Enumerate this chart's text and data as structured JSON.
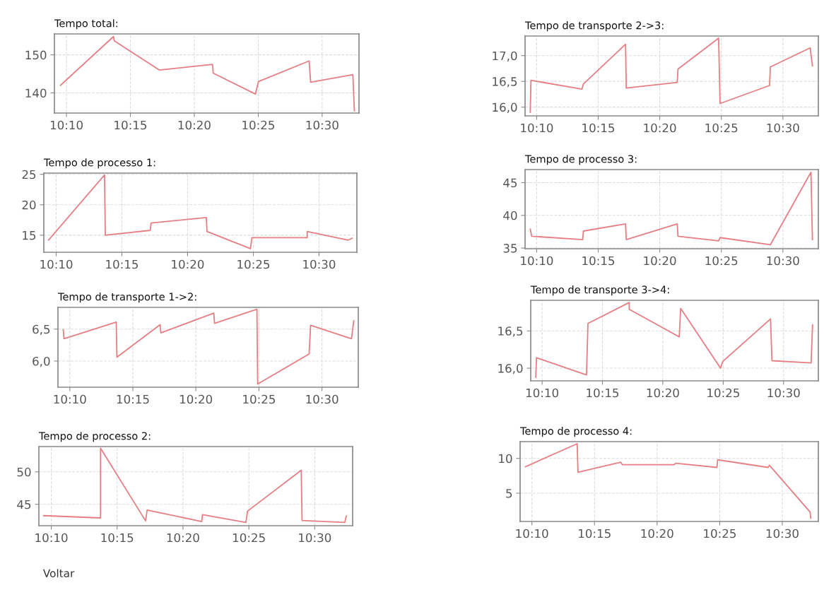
{
  "chart_data": [
    {
      "type": "line",
      "title": "Tempo total:",
      "color": "#e57f84",
      "grid": true,
      "xlim": [
        10.151,
        10.548
      ],
      "ylim": [
        134.7,
        155.5
      ],
      "xticks": [
        {
          "value": 10.1667,
          "label": "10:10"
        },
        {
          "value": 10.25,
          "label": "10:15"
        },
        {
          "value": 10.3333,
          "label": "10:20"
        },
        {
          "value": 10.4167,
          "label": "10:25"
        },
        {
          "value": 10.5,
          "label": "10:30"
        }
      ],
      "yticks": [
        140,
        150
      ],
      "x": [
        10.159,
        10.228,
        10.229,
        10.288,
        10.357,
        10.358,
        10.413,
        10.417,
        10.483,
        10.485,
        10.54,
        10.542
      ],
      "values": [
        142.0,
        154.8,
        153.7,
        146.0,
        147.5,
        145.2,
        139.7,
        143.0,
        148.4,
        142.8,
        144.8,
        135.3
      ]
    },
    {
      "type": "line",
      "title": "Tempo de processo 1:",
      "color": "#e57f84",
      "grid": true,
      "xlim": [
        10.151,
        10.548
      ],
      "ylim": [
        12.2,
        25.2
      ],
      "xticks": [
        {
          "value": 10.1667,
          "label": "10:10"
        },
        {
          "value": 10.25,
          "label": "10:15"
        },
        {
          "value": 10.3333,
          "label": "10:20"
        },
        {
          "value": 10.4167,
          "label": "10:25"
        },
        {
          "value": 10.5,
          "label": "10:30"
        }
      ],
      "yticks": [
        15,
        20,
        25
      ],
      "x": [
        10.157,
        10.228,
        10.229,
        10.286,
        10.287,
        10.357,
        10.358,
        10.413,
        10.415,
        10.485,
        10.485,
        10.537,
        10.542
      ],
      "values": [
        14.2,
        24.9,
        15.0,
        15.8,
        17.0,
        17.9,
        15.6,
        12.8,
        14.6,
        14.6,
        15.6,
        14.2,
        14.5
      ]
    },
    {
      "type": "line",
      "title": "Tempo de transporte 1->2:",
      "color": "#e57f84",
      "grid": true,
      "xlim": [
        10.151,
        10.548
      ],
      "ylim": [
        5.59,
        6.84
      ],
      "xticks": [
        {
          "value": 10.1667,
          "label": "10:10"
        },
        {
          "value": 10.25,
          "label": "10:15"
        },
        {
          "value": 10.3333,
          "label": "10:20"
        },
        {
          "value": 10.4167,
          "label": "10:25"
        },
        {
          "value": 10.5,
          "label": "10:30"
        }
      ],
      "yticks": [
        {
          "value": 6.0,
          "label": "6,0"
        },
        {
          "value": 6.5,
          "label": "6,5"
        }
      ],
      "x": [
        10.158,
        10.159,
        10.228,
        10.229,
        10.286,
        10.287,
        10.357,
        10.358,
        10.414,
        10.415,
        10.483,
        10.485,
        10.539,
        10.542
      ],
      "values": [
        6.49,
        6.35,
        6.61,
        6.06,
        6.57,
        6.44,
        6.75,
        6.59,
        6.81,
        5.64,
        6.11,
        6.56,
        6.35,
        6.63
      ]
    },
    {
      "type": "line",
      "title": "Tempo de processo 2:",
      "color": "#e57f84",
      "grid": true,
      "xlim": [
        10.151,
        10.548
      ],
      "ylim": [
        41.7,
        53.9
      ],
      "xticks": [
        {
          "value": 10.1667,
          "label": "10:10"
        },
        {
          "value": 10.25,
          "label": "10:15"
        },
        {
          "value": 10.3333,
          "label": "10:20"
        },
        {
          "value": 10.4167,
          "label": "10:25"
        },
        {
          "value": 10.5,
          "label": "10:30"
        }
      ],
      "yticks": [
        45,
        50
      ],
      "x": [
        10.157,
        10.229,
        10.229,
        10.286,
        10.288,
        10.357,
        10.358,
        10.413,
        10.415,
        10.483,
        10.484,
        10.538,
        10.54
      ],
      "values": [
        43.25,
        42.9,
        53.65,
        42.45,
        44.1,
        42.35,
        43.4,
        42.2,
        43.95,
        50.25,
        42.5,
        42.2,
        43.2
      ],
      "annotations": [
        "Voltar"
      ]
    },
    {
      "type": "line",
      "title": "Tempo de transporte 2->3:",
      "color": "#e57f84",
      "grid": true,
      "xlim": [
        10.151,
        10.548
      ],
      "ylim": [
        15.83,
        17.38
      ],
      "xticks": [
        {
          "value": 10.1667,
          "label": "10:10"
        },
        {
          "value": 10.25,
          "label": "10:15"
        },
        {
          "value": 10.3333,
          "label": "10:20"
        },
        {
          "value": 10.4167,
          "label": "10:25"
        },
        {
          "value": 10.5,
          "label": "10:30"
        }
      ],
      "yticks": [
        {
          "value": 16.0,
          "label": "16,0"
        },
        {
          "value": 16.5,
          "label": "16,5"
        },
        {
          "value": 17.0,
          "label": "17,0"
        }
      ],
      "x": [
        10.158,
        10.159,
        10.228,
        10.23,
        10.287,
        10.288,
        10.357,
        10.358,
        10.413,
        10.415,
        10.482,
        10.483,
        10.537,
        10.54
      ],
      "values": [
        15.9,
        16.52,
        16.35,
        16.45,
        17.22,
        16.37,
        16.48,
        16.74,
        17.34,
        16.07,
        16.42,
        16.78,
        17.15,
        16.8
      ]
    },
    {
      "type": "line",
      "title": "Tempo de processo 3:",
      "color": "#e57f84",
      "grid": true,
      "xlim": [
        10.151,
        10.548
      ],
      "ylim": [
        34.9,
        47.0
      ],
      "xticks": [
        {
          "value": 10.1667,
          "label": "10:10"
        },
        {
          "value": 10.25,
          "label": "10:15"
        },
        {
          "value": 10.3333,
          "label": "10:20"
        },
        {
          "value": 10.4167,
          "label": "10:25"
        },
        {
          "value": 10.5,
          "label": "10:30"
        }
      ],
      "yticks": [
        35,
        40,
        45
      ],
      "x": [
        10.158,
        10.16,
        10.229,
        10.23,
        10.287,
        10.288,
        10.357,
        10.358,
        10.413,
        10.415,
        10.483,
        10.538,
        10.54
      ],
      "values": [
        37.9,
        36.8,
        36.3,
        37.6,
        38.7,
        36.3,
        38.7,
        36.8,
        36.1,
        36.6,
        35.5,
        46.6,
        36.3
      ]
    },
    {
      "type": "line",
      "title": "Tempo de transporte 3->4:",
      "color": "#e57f84",
      "grid": true,
      "xlim": [
        10.151,
        10.548
      ],
      "ylim": [
        15.83,
        16.91
      ],
      "xticks": [
        {
          "value": 10.1667,
          "label": "10:10"
        },
        {
          "value": 10.25,
          "label": "10:15"
        },
        {
          "value": 10.3333,
          "label": "10:20"
        },
        {
          "value": 10.4167,
          "label": "10:25"
        },
        {
          "value": 10.5,
          "label": "10:30"
        }
      ],
      "yticks": [
        {
          "value": 16.0,
          "label": "16,0"
        },
        {
          "value": 16.5,
          "label": "16,5"
        }
      ],
      "x": [
        10.158,
        10.159,
        10.228,
        10.23,
        10.287,
        10.287,
        10.356,
        10.358,
        10.413,
        10.416,
        10.482,
        10.484,
        10.538,
        10.54
      ],
      "values": [
        15.88,
        16.14,
        15.91,
        16.6,
        16.88,
        16.79,
        16.42,
        16.8,
        16.0,
        16.09,
        16.66,
        16.1,
        16.07,
        16.58
      ]
    },
    {
      "type": "line",
      "title": "Tempo de processo 4:",
      "color": "#e57f84",
      "grid": true,
      "xlim": [
        10.151,
        10.548
      ],
      "ylim": [
        0.95,
        12.4
      ],
      "xticks": [
        {
          "value": 10.1667,
          "label": "10:10"
        },
        {
          "value": 10.25,
          "label": "10:15"
        },
        {
          "value": 10.3333,
          "label": "10:20"
        },
        {
          "value": 10.4167,
          "label": "10:25"
        },
        {
          "value": 10.5,
          "label": "10:30"
        }
      ],
      "yticks": [
        5,
        10
      ],
      "x": [
        10.158,
        10.227,
        10.228,
        10.285,
        10.287,
        10.356,
        10.358,
        10.413,
        10.414,
        10.481,
        10.483,
        10.537,
        10.538
      ],
      "values": [
        8.8,
        12.1,
        8.0,
        9.45,
        9.1,
        9.1,
        9.3,
        8.7,
        9.8,
        8.7,
        9.0,
        2.3,
        1.4
      ]
    }
  ]
}
